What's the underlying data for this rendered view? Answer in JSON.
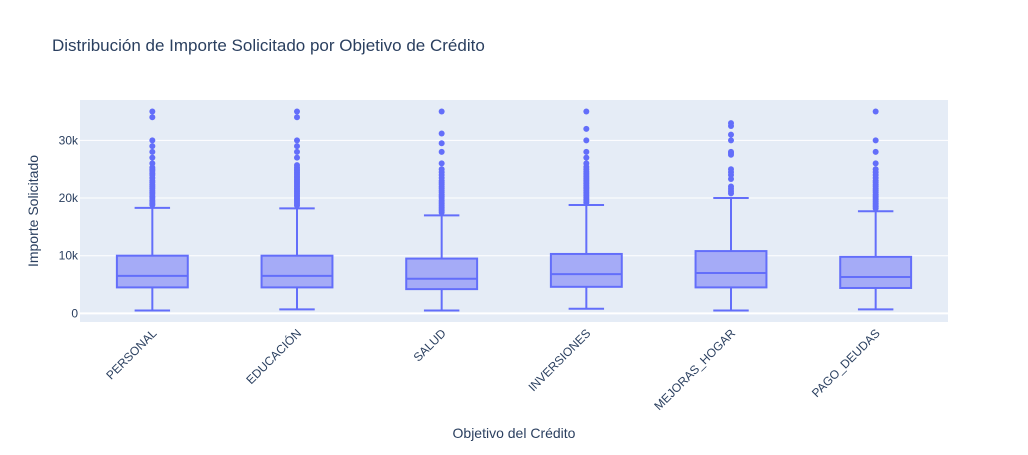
{
  "chart_data": {
    "type": "box",
    "title": "Distribución de Importe Solicitado por Objetivo de Crédito",
    "xlabel": "Objetivo del Crédito",
    "ylabel": "Importe Solicitado",
    "ylim": [
      -1500,
      37000
    ],
    "yticks": [
      {
        "value": 0,
        "label": "0"
      },
      {
        "value": 10000,
        "label": "10k"
      },
      {
        "value": 20000,
        "label": "20k"
      },
      {
        "value": 30000,
        "label": "30k"
      }
    ],
    "grid": true,
    "legend": "none",
    "colors": {
      "plot_bg": "#e5ecf6",
      "grid": "#ffffff",
      "box_fill": "#a5abf7",
      "box_line": "#636efa",
      "text": "#2a3f5f",
      "tick_text": "#2a3f5f"
    },
    "categories": [
      "PERSONAL",
      "EDUCACIÓN",
      "SALUD",
      "INVERSIONES",
      "MEJORAS_HOGAR",
      "PAGO_DEUDAS"
    ],
    "boxes": [
      {
        "category": "PERSONAL",
        "min": 500,
        "q1": 4500,
        "median": 6500,
        "q3": 10000,
        "max": 18300,
        "outliers": [
          18800,
          19000,
          19300,
          19600,
          20000,
          20300,
          20700,
          21000,
          21300,
          21700,
          22000,
          22300,
          22700,
          23000,
          23500,
          24000,
          24300,
          24700,
          25000,
          25300,
          26000,
          27000,
          28000,
          29000,
          30000,
          34000,
          35000
        ]
      },
      {
        "category": "EDUCACIÓN",
        "min": 700,
        "q1": 4500,
        "median": 6500,
        "q3": 10000,
        "max": 18200,
        "outliers": [
          18700,
          19000,
          19300,
          19600,
          19900,
          20200,
          20500,
          20800,
          21100,
          21400,
          21700,
          22000,
          22300,
          22600,
          22900,
          23200,
          23500,
          23800,
          24100,
          24400,
          24700,
          25000,
          25300,
          25700,
          27000,
          28000,
          29000,
          30000,
          34000,
          35000
        ]
      },
      {
        "category": "SALUD",
        "min": 500,
        "q1": 4200,
        "median": 6000,
        "q3": 9500,
        "max": 17000,
        "outliers": [
          17500,
          17800,
          18100,
          18400,
          18700,
          19000,
          19300,
          19600,
          20000,
          20300,
          20600,
          21000,
          21300,
          21700,
          22000,
          22400,
          22700,
          23000,
          23500,
          24000,
          24500,
          25000,
          26000,
          28000,
          29500,
          31200,
          35000
        ]
      },
      {
        "category": "INVERSIONES",
        "min": 800,
        "q1": 4600,
        "median": 6800,
        "q3": 10300,
        "max": 18800,
        "outliers": [
          19200,
          19500,
          19800,
          20100,
          20400,
          20700,
          21000,
          21300,
          21600,
          21900,
          22200,
          22500,
          22800,
          23100,
          23400,
          23700,
          24000,
          24300,
          24600,
          25000,
          25400,
          26000,
          27000,
          28000,
          30000,
          32000,
          35000
        ]
      },
      {
        "category": "MEJORAS_HOGAR",
        "min": 500,
        "q1": 4500,
        "median": 7000,
        "q3": 10800,
        "max": 20000,
        "outliers": [
          20800,
          21200,
          21600,
          22000,
          23300,
          24000,
          24500,
          25000,
          27500,
          27800,
          28000,
          30000,
          31000,
          32500,
          33000
        ]
      },
      {
        "category": "PAGO_DEUDAS",
        "min": 700,
        "q1": 4400,
        "median": 6300,
        "q3": 9800,
        "max": 17700,
        "outliers": [
          18200,
          18500,
          18800,
          19100,
          19400,
          19700,
          20000,
          20300,
          20600,
          21000,
          21300,
          21600,
          22000,
          22300,
          22700,
          23000,
          23500,
          24000,
          24500,
          25000,
          26000,
          28000,
          30000,
          35000
        ]
      }
    ]
  }
}
